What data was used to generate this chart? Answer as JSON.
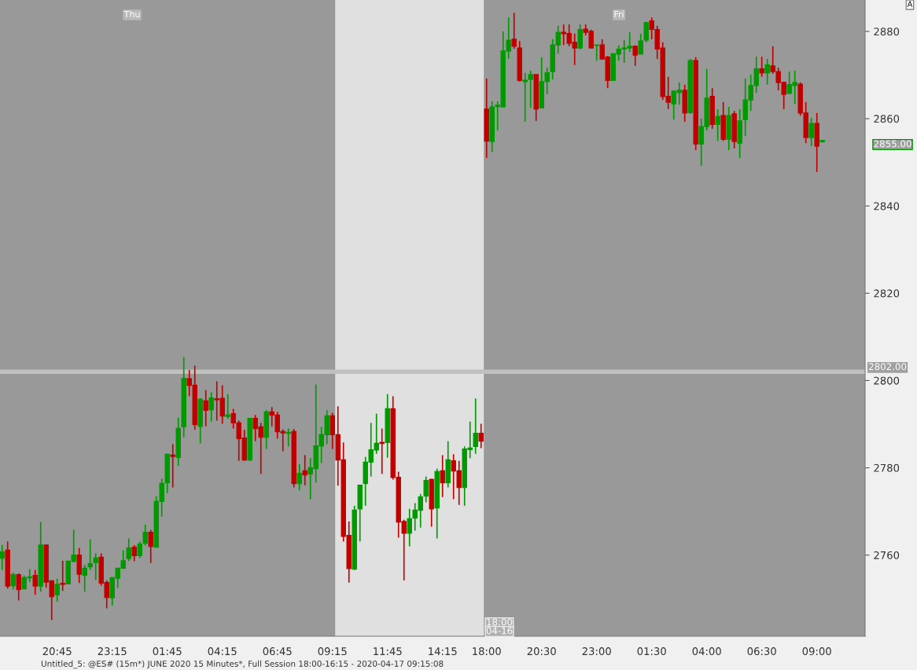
{
  "chart_data": {
    "type": "candlestick",
    "categories": [
      null,
      null,
      null,
      null,
      null,
      null,
      null,
      null,
      null,
      null,
      "20:45",
      null,
      null,
      null,
      null,
      null,
      null,
      null,
      null,
      null,
      "23:15",
      null,
      null,
      null,
      null,
      null,
      null,
      null,
      null,
      null,
      "01:45",
      null,
      null,
      null,
      null,
      null,
      null,
      null,
      null,
      null,
      "04:15",
      null,
      null,
      null,
      null,
      null,
      null,
      null,
      null,
      null,
      "06:45",
      null,
      null,
      null,
      null,
      null,
      null,
      null,
      null,
      null,
      "09:15",
      null,
      null,
      null,
      null,
      null,
      null,
      null,
      null,
      null,
      "11:45",
      null,
      null,
      null,
      null,
      null,
      null,
      null,
      null,
      null,
      "14:15",
      null,
      null,
      null,
      null,
      null,
      null,
      null,
      "18:00",
      null,
      null,
      null,
      null,
      null,
      null,
      null,
      null,
      null,
      "20:30",
      null,
      null,
      null,
      null,
      null,
      null,
      null,
      null,
      null,
      "23:00",
      null,
      null,
      null,
      null,
      null,
      null,
      null,
      null,
      null,
      "01:30",
      null,
      null,
      null,
      null,
      null,
      null,
      null,
      null,
      null,
      "04:00",
      null,
      null,
      null,
      null,
      null,
      null,
      null,
      null,
      null,
      "06:30",
      null,
      null,
      null,
      null,
      null,
      null,
      null,
      null,
      null,
      "09:00",
      null
    ],
    "ohlc": [
      [
        2759.3,
        2762.3,
        2756.6,
        2760.7
      ],
      [
        2761.1,
        2763.1,
        2752.3,
        2752.9
      ],
      [
        2753.0,
        2756.0,
        2752.1,
        2755.5
      ],
      [
        2755.5,
        2755.8,
        2749.6,
        2752.1
      ],
      [
        2752.3,
        2755.3,
        2752.1,
        2754.8
      ],
      [
        2754.8,
        2756.8,
        2753.8,
        2755.0
      ],
      [
        2755.3,
        2756.6,
        2750.9,
        2752.9
      ],
      [
        2752.9,
        2767.6,
        2751.6,
        2762.3
      ],
      [
        2762.3,
        2762.3,
        2752.5,
        2753.8
      ],
      [
        2754.1,
        2754.1,
        2745.1,
        2750.5
      ],
      [
        2750.9,
        2754.6,
        2749.3,
        2753.3
      ],
      [
        2753.5,
        2758.7,
        2751.8,
        2753.3
      ],
      [
        2753.4,
        2758.6,
        2753.4,
        2758.6
      ],
      [
        2758.6,
        2765.8,
        2758.3,
        2760.0
      ],
      [
        2760.0,
        2761.6,
        2753.6,
        2755.6
      ],
      [
        2755.4,
        2757.8,
        2751.6,
        2757.0
      ],
      [
        2757.3,
        2763.6,
        2756.6,
        2758.0
      ],
      [
        2758.3,
        2760.4,
        2754.3,
        2759.3
      ],
      [
        2759.5,
        2760.4,
        2753.0,
        2753.6
      ],
      [
        2753.7,
        2754.2,
        2747.8,
        2750.3
      ],
      [
        2750.2,
        2754.8,
        2748.4,
        2754.8
      ],
      [
        2754.7,
        2757.0,
        2752.5,
        2757.0
      ],
      [
        2757.0,
        2761.1,
        2756.8,
        2758.7
      ],
      [
        2759.2,
        2763.8,
        2758.6,
        2761.6
      ],
      [
        2761.8,
        2762.3,
        2758.6,
        2759.9
      ],
      [
        2759.9,
        2763.1,
        2759.3,
        2762.5
      ],
      [
        2762.7,
        2767.0,
        2762.2,
        2765.2
      ],
      [
        2765.2,
        2765.8,
        2758.2,
        2762.0
      ],
      [
        2761.8,
        2773.5,
        2761.8,
        2772.3
      ],
      [
        2772.3,
        2777.5,
        2768.8,
        2776.4
      ],
      [
        2776.6,
        2783.2,
        2774.2,
        2783.1
      ],
      [
        2782.9,
        2785.4,
        2775.5,
        2782.6
      ],
      [
        2782.4,
        2791.5,
        2780.4,
        2789.0
      ],
      [
        2789.4,
        2805.4,
        2787.0,
        2800.5
      ],
      [
        2800.4,
        2802.4,
        2796.4,
        2798.9
      ],
      [
        2798.9,
        2803.4,
        2788.7,
        2789.9
      ],
      [
        2789.5,
        2796.0,
        2785.6,
        2795.7
      ],
      [
        2795.3,
        2797.8,
        2789.5,
        2793.2
      ],
      [
        2793.3,
        2797.3,
        2790.6,
        2796.0
      ],
      [
        2795.8,
        2799.8,
        2790.8,
        2795.6
      ],
      [
        2795.9,
        2798.9,
        2790.1,
        2791.9
      ],
      [
        2791.8,
        2796.9,
        2791.2,
        2792.1
      ],
      [
        2792.4,
        2793.5,
        2789.0,
        2790.3
      ],
      [
        2790.3,
        2790.8,
        2781.6,
        2786.7
      ],
      [
        2786.8,
        2788.7,
        2781.6,
        2781.8
      ],
      [
        2781.8,
        2791.3,
        2781.6,
        2791.3
      ],
      [
        2791.3,
        2792.1,
        2786.1,
        2789.0
      ],
      [
        2789.4,
        2790.3,
        2778.6,
        2787.0
      ],
      [
        2787.0,
        2793.2,
        2784.3,
        2792.8
      ],
      [
        2792.8,
        2793.9,
        2789.5,
        2792.1
      ],
      [
        2792.1,
        2792.8,
        2786.7,
        2788.3
      ],
      [
        2788.3,
        2788.8,
        2783.8,
        2788.0
      ],
      [
        2787.9,
        2789.0,
        2784.9,
        2788.1
      ],
      [
        2788.3,
        2788.9,
        2775.5,
        2776.4
      ],
      [
        2776.4,
        2780.9,
        2774.8,
        2778.7
      ],
      [
        2779.3,
        2782.9,
        2776.0,
        2778.4
      ],
      [
        2778.6,
        2782.2,
        2772.8,
        2780.0
      ],
      [
        2779.8,
        2799.1,
        2776.6,
        2785.0
      ],
      [
        2785.0,
        2789.4,
        2781.1,
        2787.6
      ],
      [
        2787.6,
        2793.2,
        2785.4,
        2791.9
      ],
      [
        2791.9,
        2792.6,
        2784.3,
        2787.6
      ],
      [
        2787.6,
        2794.1,
        2775.9,
        2781.8
      ],
      [
        2781.8,
        2785.8,
        2763.1,
        2764.3
      ],
      [
        2764.5,
        2767.7,
        2753.7,
        2756.9
      ],
      [
        2756.8,
        2771.3,
        2756.6,
        2770.3
      ],
      [
        2770.6,
        2776.0,
        2763.1,
        2776.0
      ],
      [
        2776.4,
        2782.5,
        2771.3,
        2781.3
      ],
      [
        2781.3,
        2790.3,
        2778.0,
        2784.1
      ],
      [
        2784.1,
        2792.4,
        2783.2,
        2785.6
      ],
      [
        2785.8,
        2789.0,
        2778.6,
        2785.6
      ],
      [
        2785.8,
        2796.9,
        2782.3,
        2793.5
      ],
      [
        2793.5,
        2796.4,
        2777.3,
        2777.8
      ],
      [
        2777.8,
        2779.1,
        2764.0,
        2767.6
      ],
      [
        2767.7,
        2768.1,
        2754.2,
        2765.0
      ],
      [
        2765.0,
        2770.6,
        2762.0,
        2768.3
      ],
      [
        2768.5,
        2771.9,
        2765.6,
        2770.3
      ],
      [
        2770.3,
        2774.0,
        2766.3,
        2773.3
      ],
      [
        2773.5,
        2778.0,
        2772.1,
        2777.1
      ],
      [
        2777.3,
        2777.5,
        2766.5,
        2770.6
      ],
      [
        2770.8,
        2779.8,
        2763.8,
        2779.1
      ],
      [
        2779.3,
        2782.9,
        2773.3,
        2776.6
      ],
      [
        2776.6,
        2786.1,
        2775.5,
        2781.8
      ],
      [
        2781.6,
        2783.1,
        2772.8,
        2779.3
      ],
      [
        2779.3,
        2781.6,
        2771.5,
        2775.5
      ],
      [
        2775.5,
        2784.9,
        2771.3,
        2784.3
      ],
      [
        2784.2,
        2790.6,
        2782.2,
        2784.5
      ],
      [
        2784.9,
        2795.9,
        2783.2,
        2787.9
      ],
      [
        2787.9,
        2790.1,
        2784.5,
        2786.1
      ],
      [
        2862.2,
        2869.2,
        2851.0,
        2854.9
      ],
      [
        2854.8,
        2864.0,
        2852.4,
        2862.7
      ],
      [
        2862.8,
        2864.0,
        2857.3,
        2863.1
      ],
      [
        2862.7,
        2880.0,
        2862.7,
        2875.5
      ],
      [
        2875.5,
        2883.2,
        2873.7,
        2878.0
      ],
      [
        2878.2,
        2884.3,
        2876.0,
        2876.6
      ],
      [
        2876.2,
        2877.8,
        2868.5,
        2868.8
      ],
      [
        2868.5,
        2870.5,
        2859.3,
        2868.8
      ],
      [
        2869.0,
        2871.0,
        2862.5,
        2870.1
      ],
      [
        2870.1,
        2870.1,
        2859.5,
        2862.2
      ],
      [
        2862.5,
        2874.1,
        2862.5,
        2868.5
      ],
      [
        2868.5,
        2871.7,
        2865.6,
        2870.5
      ],
      [
        2870.8,
        2878.2,
        2869.0,
        2876.9
      ],
      [
        2876.9,
        2881.3,
        2874.9,
        2879.8
      ],
      [
        2879.8,
        2881.6,
        2876.9,
        2879.5
      ],
      [
        2879.5,
        2881.6,
        2876.6,
        2877.3
      ],
      [
        2877.5,
        2879.5,
        2872.3,
        2876.2
      ],
      [
        2876.2,
        2881.6,
        2875.9,
        2880.4
      ],
      [
        2880.5,
        2881.6,
        2879.1,
        2879.8
      ],
      [
        2880.0,
        2880.4,
        2876.2,
        2876.2
      ],
      [
        2876.8,
        2876.9,
        2873.3,
        2876.9
      ],
      [
        2876.9,
        2878.2,
        2873.5,
        2873.7
      ],
      [
        2874.1,
        2874.4,
        2867.0,
        2868.8
      ],
      [
        2868.8,
        2874.9,
        2868.8,
        2874.9
      ],
      [
        2874.8,
        2876.8,
        2873.3,
        2875.9
      ],
      [
        2876.0,
        2878.0,
        2872.8,
        2876.2
      ],
      [
        2876.2,
        2879.8,
        2875.3,
        2876.6
      ],
      [
        2876.6,
        2876.8,
        2872.1,
        2874.6
      ],
      [
        2874.8,
        2879.5,
        2874.8,
        2877.8
      ],
      [
        2878.0,
        2882.2,
        2877.5,
        2882.0
      ],
      [
        2882.4,
        2883.2,
        2878.2,
        2880.5
      ],
      [
        2880.4,
        2881.3,
        2873.7,
        2876.0
      ],
      [
        2876.2,
        2877.5,
        2864.3,
        2865.1
      ],
      [
        2865.1,
        2869.6,
        2862.2,
        2863.8
      ],
      [
        2863.4,
        2866.5,
        2859.8,
        2866.3
      ],
      [
        2866.0,
        2868.3,
        2863.2,
        2866.5
      ],
      [
        2866.5,
        2867.8,
        2859.3,
        2861.3
      ],
      [
        2861.4,
        2873.7,
        2861.1,
        2873.3
      ],
      [
        2873.3,
        2874.1,
        2852.8,
        2854.2
      ],
      [
        2854.2,
        2860.0,
        2849.2,
        2858.2
      ],
      [
        2858.2,
        2871.4,
        2857.3,
        2864.7
      ],
      [
        2865.1,
        2867.0,
        2857.7,
        2858.7
      ],
      [
        2858.7,
        2862.2,
        2854.9,
        2860.5
      ],
      [
        2860.7,
        2863.8,
        2854.9,
        2855.3
      ],
      [
        2855.3,
        2862.7,
        2852.8,
        2860.7
      ],
      [
        2861.1,
        2861.8,
        2853.2,
        2854.8
      ],
      [
        2854.4,
        2862.2,
        2851.0,
        2859.5
      ],
      [
        2859.8,
        2869.2,
        2856.0,
        2864.3
      ],
      [
        2864.3,
        2870.1,
        2861.8,
        2867.6
      ],
      [
        2867.6,
        2874.2,
        2865.9,
        2871.4
      ],
      [
        2871.4,
        2874.2,
        2869.6,
        2870.5
      ],
      [
        2870.5,
        2873.7,
        2867.8,
        2872.3
      ],
      [
        2872.1,
        2876.6,
        2870.3,
        2870.8
      ],
      [
        2870.8,
        2871.7,
        2866.5,
        2868.3
      ],
      [
        2868.3,
        2868.5,
        2862.2,
        2865.6
      ],
      [
        2865.8,
        2870.8,
        2865.6,
        2867.8
      ],
      [
        2867.6,
        2871.0,
        2863.4,
        2868.3
      ],
      [
        2867.9,
        2868.3,
        2860.7,
        2861.3
      ],
      [
        2861.3,
        2863.8,
        2854.4,
        2855.7
      ],
      [
        2855.7,
        2860.2,
        2853.7,
        2858.9
      ],
      [
        2858.9,
        2861.3,
        2847.8,
        2853.7
      ],
      [
        2854.75,
        2855.0,
        2854.5,
        2855.0
      ]
    ],
    "ylim": [
      2741.4,
      2887.2
    ],
    "yticks": [
      2760,
      2780,
      2800,
      2820,
      2840,
      2860,
      2880
    ],
    "ref_lines": [
      {
        "axis": "y",
        "value": 2802,
        "label": "2802.00",
        "color": "#c0c0c0"
      }
    ],
    "bands": [
      {
        "axis": "x",
        "from": "09:15",
        "to": "18:00",
        "color": "#e0e0e0"
      }
    ],
    "annotations": [
      "Thu",
      "Fri",
      "18:00",
      "04-16",
      "A",
      "Untitled_5: @ES# (15m*) JUNE 2020 15 Minutes*, Full Session 18:00-16:15 - 2020-04-17 09:15:08",
      "2855.00"
    ],
    "grid": false,
    "legend": false
  }
}
